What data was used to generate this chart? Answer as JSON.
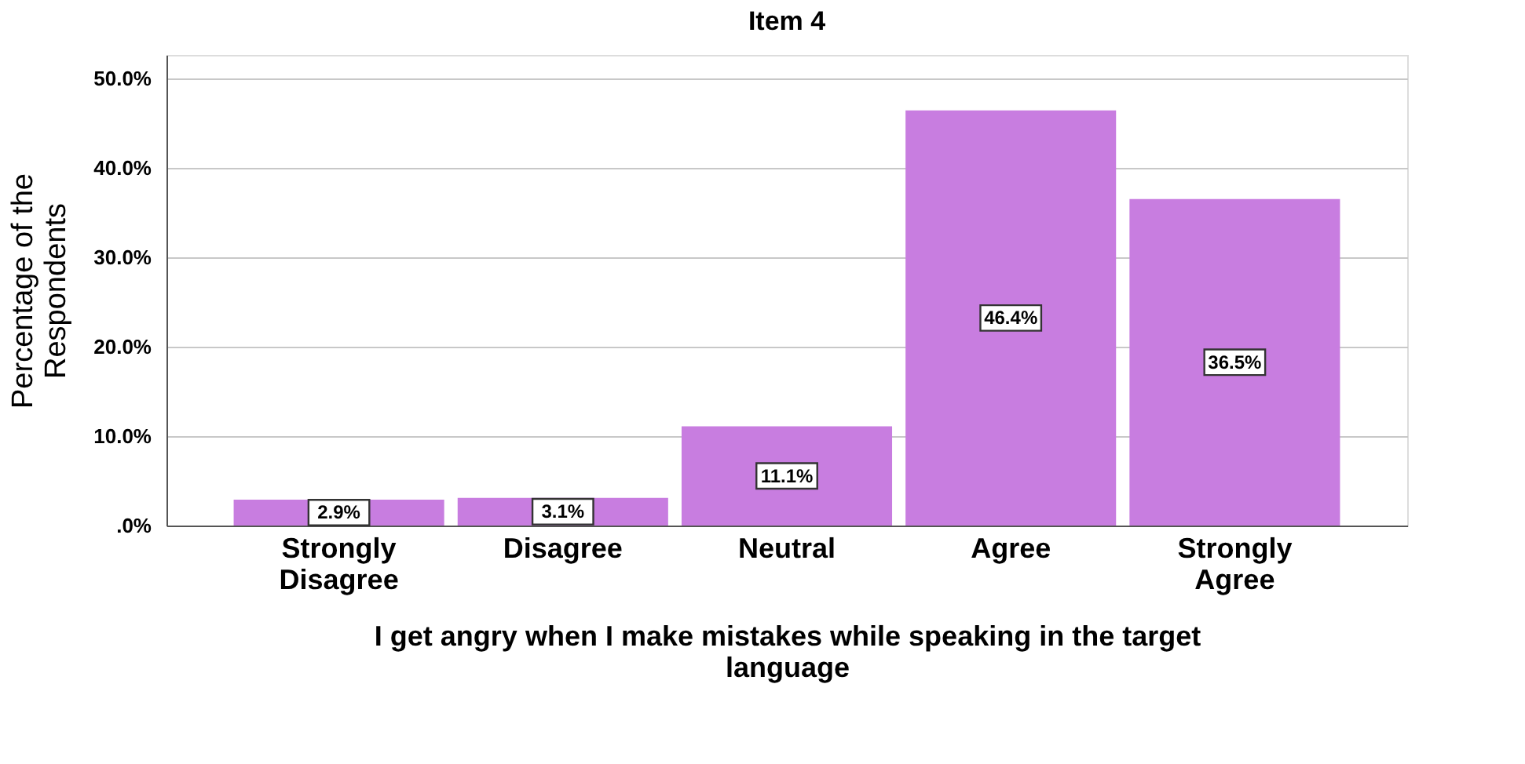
{
  "chart_data": {
    "type": "bar",
    "title": "Item 4",
    "xlabel": "I get angry when I make mistakes while speaking in the target language",
    "ylabel": "Percentage of the Respondents",
    "categories": [
      "Strongly Disagree",
      "Disagree",
      "Neutral",
      "Agree",
      "Strongly Agree"
    ],
    "values": [
      2.9,
      3.1,
      11.1,
      46.4,
      36.5
    ],
    "value_labels": [
      "2.9%",
      "3.1%",
      "11.1%",
      "46.4%",
      "36.5%"
    ],
    "color": "#c87de0",
    "ylim": [
      0,
      52.6
    ],
    "yticks": [
      {
        "value": 0,
        "label": ".0%"
      },
      {
        "value": 10,
        "label": "10.0%"
      },
      {
        "value": 20,
        "label": "20.0%"
      },
      {
        "value": 30,
        "label": "30.0%"
      },
      {
        "value": 40,
        "label": "40.0%"
      },
      {
        "value": 50,
        "label": "50.0%"
      }
    ],
    "grid": "y"
  }
}
